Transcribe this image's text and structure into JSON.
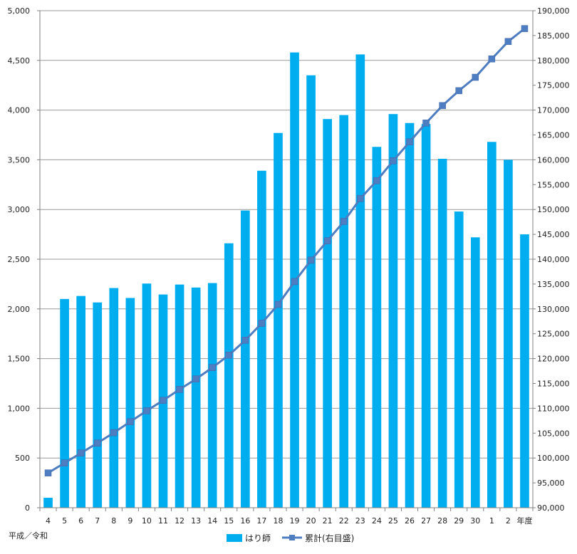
{
  "chart_data": {
    "type": "bar",
    "categories": [
      "4",
      "5",
      "6",
      "7",
      "8",
      "9",
      "10",
      "11",
      "12",
      "13",
      "14",
      "15",
      "16",
      "17",
      "18",
      "19",
      "20",
      "21",
      "22",
      "23",
      "24",
      "25",
      "26",
      "27",
      "28",
      "29",
      "30",
      "1",
      "2",
      "年度"
    ],
    "era_label": "平成／令和",
    "series": [
      {
        "name": "はり師",
        "type": "bar",
        "axis": "left",
        "color": "#00aeef",
        "values": [
          100,
          2100,
          2130,
          2065,
          2210,
          2110,
          2255,
          2145,
          2245,
          2215,
          2260,
          2660,
          2990,
          3390,
          3770,
          4580,
          4350,
          3910,
          3950,
          4560,
          3630,
          3960,
          3870,
          3860,
          3510,
          2980,
          2720,
          3680,
          3500,
          2750
        ]
      },
      {
        "name": "累計(右目盛)",
        "type": "line",
        "axis": "right",
        "color": "#4f7dc1",
        "marker": "square",
        "values": [
          97000,
          99000,
          101000,
          103000,
          105100,
          107300,
          109500,
          111600,
          113800,
          115900,
          118200,
          120700,
          123700,
          127100,
          130900,
          135500,
          139800,
          143700,
          147600,
          152200,
          155800,
          159800,
          163600,
          167400,
          170900,
          173900,
          176600,
          180300,
          183800,
          186400
        ]
      }
    ],
    "y_left": {
      "min": 0,
      "max": 5000,
      "step": 500,
      "ticks": [
        "0",
        "500",
        "1,000",
        "1,500",
        "2,000",
        "2,500",
        "3,000",
        "3,500",
        "4,000",
        "4,500",
        "5,000"
      ]
    },
    "y_right": {
      "min": 90000,
      "max": 190000,
      "step": 5000,
      "ticks": [
        "90,000",
        "95,000",
        "100,000",
        "105,000",
        "110,000",
        "115,000",
        "120,000",
        "125,000",
        "130,000",
        "135,000",
        "140,000",
        "145,000",
        "150,000",
        "155,000",
        "160,000",
        "165,000",
        "170,000",
        "175,000",
        "180,000",
        "185,000",
        "190,000"
      ]
    },
    "grid": true,
    "legend": "bottom-center"
  }
}
